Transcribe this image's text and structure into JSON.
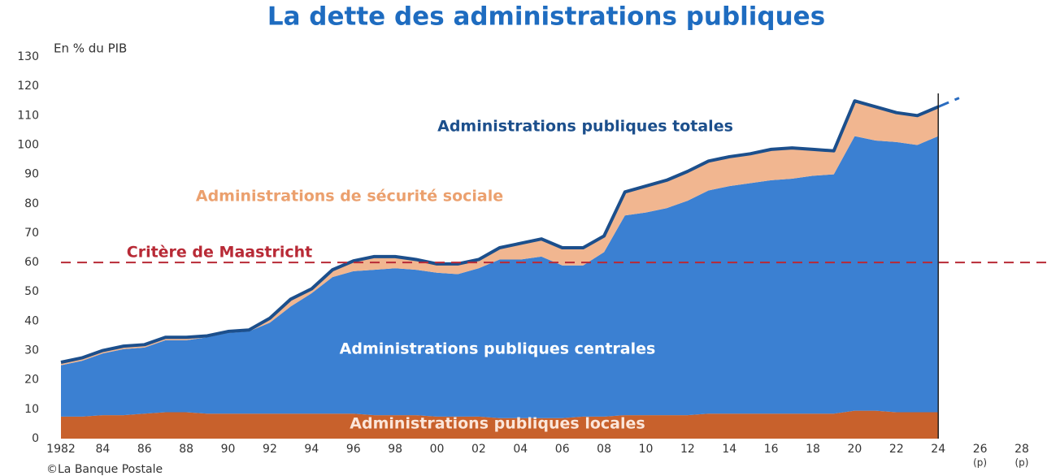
{
  "chart_data": {
    "type": "stacked_area",
    "title": "La dette des administrations publiques",
    "y_axis_label": "En % du PIB",
    "source": "©La Banque Postale",
    "xlim": [
      1982,
      2028
    ],
    "xticks": [
      1982,
      {
        "value": 1984,
        "label": "84"
      },
      {
        "value": 1986,
        "label": "86"
      },
      {
        "value": 1988,
        "label": "88"
      },
      {
        "value": 1990,
        "label": "90"
      },
      {
        "value": 1992,
        "label": "92"
      },
      {
        "value": 1994,
        "label": "94"
      },
      {
        "value": 1996,
        "label": "96"
      },
      {
        "value": 1998,
        "label": "98"
      },
      {
        "value": 2000,
        "label": "00"
      },
      {
        "value": 2002,
        "label": "02"
      },
      {
        "value": 2004,
        "label": "04"
      },
      {
        "value": 2006,
        "label": "06"
      },
      {
        "value": 2008,
        "label": "08"
      },
      {
        "value": 2010,
        "label": "10"
      },
      {
        "value": 2012,
        "label": "12"
      },
      {
        "value": 2014,
        "label": "14"
      },
      {
        "value": 2016,
        "label": "16"
      },
      {
        "value": 2018,
        "label": "18"
      },
      {
        "value": 2020,
        "label": "20"
      },
      {
        "value": 2022,
        "label": "22"
      },
      {
        "value": 2024,
        "label": "24"
      },
      {
        "value": 2026,
        "label": "26",
        "sublabel": "(p)"
      },
      {
        "value": 2028,
        "label": "28",
        "sublabel": "(p)"
      }
    ],
    "ylim": [
      0,
      130
    ],
    "yticks": [
      0,
      10,
      20,
      30,
      40,
      50,
      60,
      70,
      80,
      90,
      100,
      110,
      120,
      130
    ],
    "x": [
      1982,
      1983,
      1984,
      1985,
      1986,
      1987,
      1988,
      1989,
      1990,
      1991,
      1992,
      1993,
      1994,
      1995,
      1996,
      1997,
      1998,
      1999,
      2000,
      2001,
      2002,
      2003,
      2004,
      2005,
      2006,
      2007,
      2008,
      2009,
      2010,
      2011,
      2012,
      2013,
      2014,
      2015,
      2016,
      2017,
      2018,
      2019,
      2020,
      2021,
      2022,
      2023,
      2024
    ],
    "series": [
      {
        "name": "Administrations publiques locales",
        "color": "#c8612c",
        "values": [
          7.5,
          7.5,
          8,
          8,
          8.5,
          9,
          9,
          8.5,
          8.5,
          8.5,
          8.5,
          8.5,
          8.5,
          8.5,
          8.5,
          8,
          8,
          8,
          7.5,
          7.5,
          7.5,
          7,
          7,
          7,
          7,
          7.5,
          7.5,
          8,
          8,
          8,
          8,
          8.5,
          8.5,
          8.5,
          8.5,
          8.5,
          8.5,
          8.5,
          9.5,
          9.5,
          9,
          9,
          9
        ]
      },
      {
        "name": "Administrations publiques centrales",
        "color": "#3b80d2",
        "values": [
          17.5,
          19,
          21,
          22.5,
          22.5,
          24.5,
          24.5,
          26,
          27.5,
          28,
          31,
          36.5,
          41,
          46.5,
          48.5,
          49.5,
          50,
          49.5,
          49,
          48.5,
          50.5,
          54,
          54,
          55,
          52,
          51.5,
          56,
          68,
          69,
          70.5,
          73,
          76,
          77.5,
          78.5,
          79.5,
          80,
          81,
          81.5,
          93.5,
          92,
          92,
          91,
          94
        ]
      },
      {
        "name": "Administrations de sécurité sociale",
        "color": "#f1b690",
        "values": [
          1,
          1,
          1,
          1,
          1,
          1,
          1,
          0.5,
          0.5,
          0.5,
          1.5,
          2.5,
          1.5,
          2.5,
          3.5,
          4.5,
          4,
          3.5,
          3,
          3.5,
          3,
          4,
          5.5,
          6,
          6,
          6,
          5.5,
          8,
          9,
          9.5,
          10,
          10,
          10,
          10,
          10.5,
          10.5,
          9,
          8,
          12,
          11.5,
          10,
          10,
          10
        ]
      }
    ],
    "total": {
      "name": "Administrations publiques totales",
      "color": "#1c4f8c",
      "values": [
        26,
        27.5,
        30,
        31.5,
        32,
        34.5,
        34.5,
        35,
        36.5,
        37,
        41,
        47.5,
        51,
        57.5,
        60.5,
        62,
        62,
        61,
        59.5,
        59.5,
        61,
        65,
        66.5,
        68,
        65,
        65,
        69,
        84,
        86,
        88,
        91,
        94.5,
        96,
        97,
        98.5,
        99,
        98.5,
        98,
        115,
        113,
        111,
        110,
        113
      ]
    },
    "projection": {
      "x": [
        2024,
        2025
      ],
      "values": [
        113,
        116
      ]
    },
    "reference_line": {
      "label": "Critère de Maastricht",
      "value": 60,
      "color": "#b82a36"
    }
  }
}
